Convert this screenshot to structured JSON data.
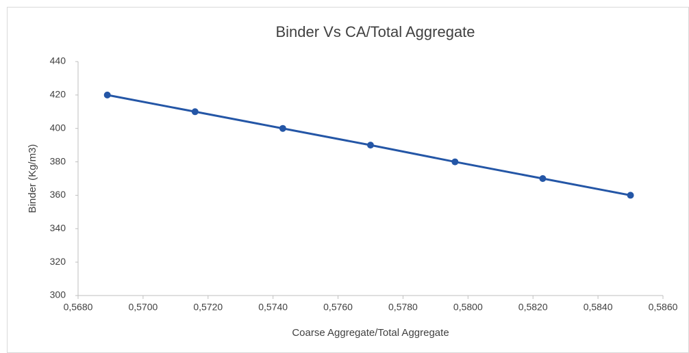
{
  "chart_data": {
    "type": "line",
    "title": "Binder Vs CA/Total Aggregate",
    "x_label": "Coarse Aggregate/Total Aggregate",
    "y_label": "Binder (Kg/m3)",
    "x": [
      0.5689,
      0.5716,
      0.5743,
      0.577,
      0.5796,
      0.5823,
      0.585
    ],
    "series": [
      {
        "name": "Binder",
        "color": "#2456a6",
        "values": [
          420,
          410,
          400,
          390,
          380,
          370,
          360
        ]
      }
    ],
    "xlim": [
      0.568,
      0.586
    ],
    "xticks": [
      {
        "value": 0.568,
        "label": "0,5680"
      },
      {
        "value": 0.57,
        "label": "0,5700"
      },
      {
        "value": 0.572,
        "label": "0,5720"
      },
      {
        "value": 0.574,
        "label": "0,5740"
      },
      {
        "value": 0.576,
        "label": "0,5760"
      },
      {
        "value": 0.578,
        "label": "0,5780"
      },
      {
        "value": 0.58,
        "label": "0,5800"
      },
      {
        "value": 0.582,
        "label": "0,5820"
      },
      {
        "value": 0.584,
        "label": "0,5840"
      },
      {
        "value": 0.586,
        "label": "0,5860"
      }
    ],
    "ylim": [
      300,
      440
    ],
    "yticks": [
      300,
      320,
      340,
      360,
      380,
      400,
      420,
      440
    ],
    "grid": false
  }
}
